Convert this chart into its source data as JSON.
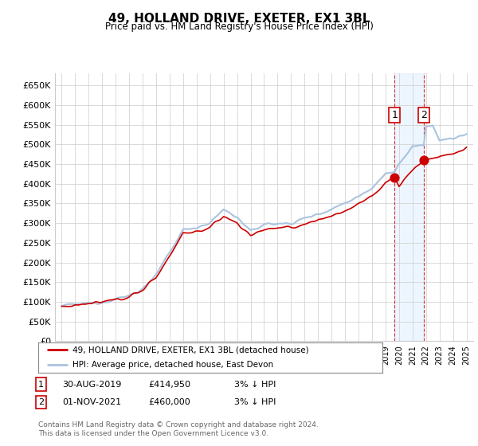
{
  "title": "49, HOLLAND DRIVE, EXETER, EX1 3BL",
  "subtitle": "Price paid vs. HM Land Registry's House Price Index (HPI)",
  "yticks": [
    0,
    50000,
    100000,
    150000,
    200000,
    250000,
    300000,
    350000,
    400000,
    450000,
    500000,
    550000,
    600000,
    650000
  ],
  "ytick_labels": [
    "£0",
    "£50K",
    "£100K",
    "£150K",
    "£200K",
    "£250K",
    "£300K",
    "£350K",
    "£400K",
    "£450K",
    "£500K",
    "£550K",
    "£600K",
    "£650K"
  ],
  "xlim_start": 1994.5,
  "xlim_end": 2025.5,
  "ylim_bottom": 0,
  "ylim_top": 680000,
  "sale1_x": 2019.667,
  "sale1_y": 414950,
  "sale1_label": "1",
  "sale1_date": "30-AUG-2019",
  "sale1_price": "£414,950",
  "sale1_hpi": "3% ↓ HPI",
  "sale2_x": 2021.833,
  "sale2_y": 460000,
  "sale2_label": "2",
  "sale2_date": "01-NOV-2021",
  "sale2_price": "£460,000",
  "sale2_hpi": "3% ↓ HPI",
  "line_color_property": "#cc0000",
  "line_color_hpi": "#aac4dd",
  "grid_color": "#cccccc",
  "background_color": "#ffffff",
  "shade_color": "#ddeeff",
  "marker_box_color": "#cc0000",
  "legend_label_1": "49, HOLLAND DRIVE, EXETER, EX1 3BL (detached house)",
  "legend_label_2": "HPI: Average price, detached house, East Devon",
  "footer": "Contains HM Land Registry data © Crown copyright and database right 2024.\nThis data is licensed under the Open Government Licence v3.0.",
  "marker_y_pos": 575000,
  "dot_size": 60
}
